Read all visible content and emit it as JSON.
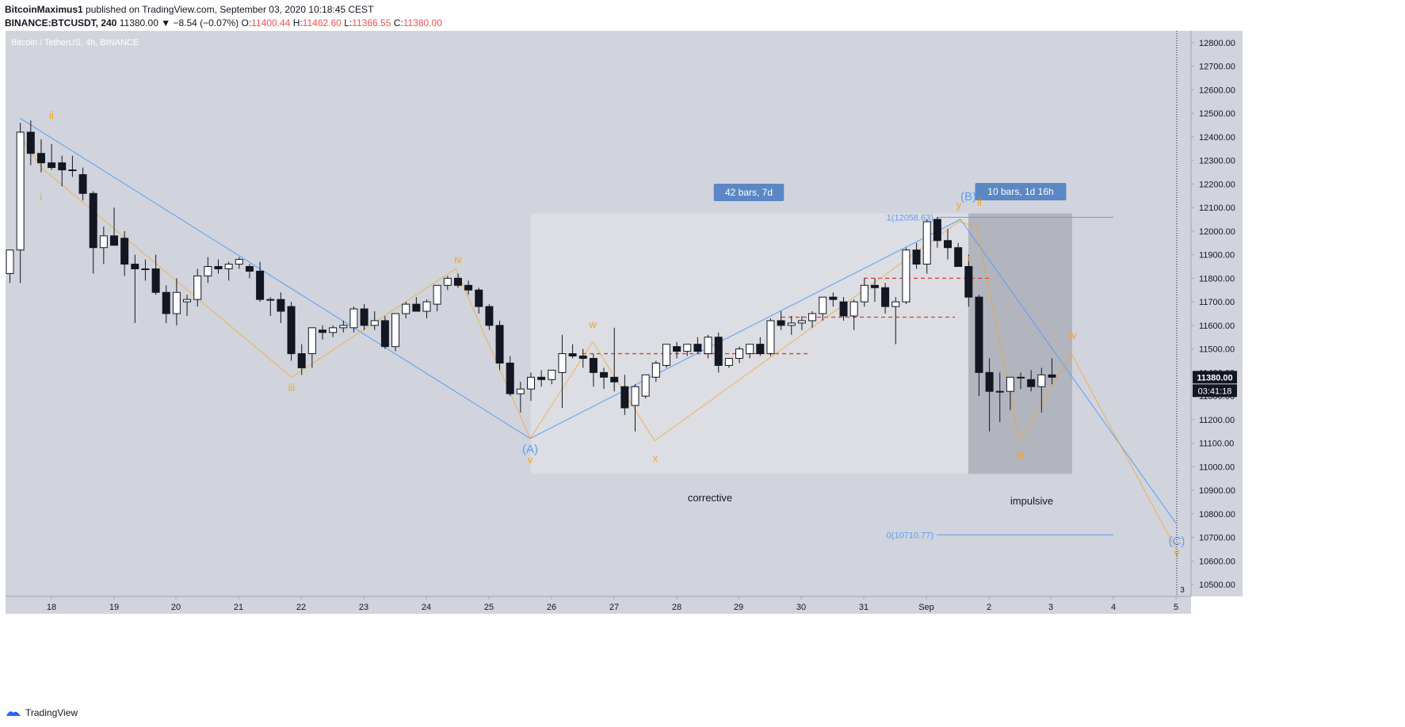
{
  "header": {
    "author": "BitcoinMaximus1",
    "published_text": "published on TradingView.com, September 03, 2020 10:18:45 CEST",
    "symbol": "BINANCE:BTCUSDT, 240",
    "last": "11380.00",
    "change": "▼ −8.54 (−0.07%)",
    "o_label": "O:",
    "o": "11400.44",
    "h_label": "H:",
    "h": "11462.60",
    "l_label": "L:",
    "l": "11366.55",
    "c_label": "C:",
    "c": "11380.00"
  },
  "footer": {
    "brand": "TradingView"
  },
  "colors": {
    "plot_bg": "#d1d4dc",
    "axis_bg": "#d1d4dc",
    "bull": "#ffffff",
    "bear": "#131722",
    "wave_orange": "#f7a21b",
    "trend_blue": "#5b9cf6",
    "range_dark": "#b2b5be",
    "range_light": "#dcdee3",
    "label_bg": "#5b87c4",
    "dash_red": "#e53935"
  },
  "chart_data": {
    "type": "candlestick",
    "title": "Bitcoin / TetherUS, 4h, BINANCE",
    "ylim": [
      10450,
      12850
    ],
    "y_ticks": [
      "12800.00",
      "12700.00",
      "12600.00",
      "12500.00",
      "12400.00",
      "12300.00",
      "12200.00",
      "12100.00",
      "12000.00",
      "11900.00",
      "11800.00",
      "11700.00",
      "11600.00",
      "11500.00",
      "11400.00",
      "11300.00",
      "11200.00",
      "11100.00",
      "11000.00",
      "10900.00",
      "10800.00",
      "10700.00",
      "10600.00",
      "10500.00"
    ],
    "x_ticks": [
      "18",
      "19",
      "20",
      "21",
      "22",
      "23",
      "24",
      "25",
      "26",
      "27",
      "28",
      "29",
      "30",
      "31",
      "Sep",
      "2",
      "3",
      "4",
      "5"
    ],
    "last_price_label": "11380.00",
    "countdown_label": "03:41:18",
    "corner_label": "3",
    "candles_ohlc": [
      [
        11820,
        11920,
        11780,
        11920
      ],
      [
        11920,
        12460,
        11780,
        12420
      ],
      [
        12420,
        12470,
        12280,
        12330
      ],
      [
        12330,
        12390,
        12250,
        12290
      ],
      [
        12290,
        12370,
        12260,
        12270
      ],
      [
        12290,
        12320,
        12190,
        12260
      ],
      [
        12260,
        12320,
        12230,
        12260
      ],
      [
        12240,
        12270,
        12130,
        12160
      ],
      [
        12160,
        12170,
        11820,
        11930
      ],
      [
        11930,
        12020,
        11860,
        11980
      ],
      [
        11980,
        12100,
        11940,
        11940
      ],
      [
        11970,
        12000,
        11810,
        11860
      ],
      [
        11860,
        11900,
        11610,
        11840
      ],
      [
        11840,
        11880,
        11790,
        11840
      ],
      [
        11840,
        11900,
        11730,
        11740
      ],
      [
        11740,
        11770,
        11610,
        11650
      ],
      [
        11650,
        11800,
        11600,
        11740
      ],
      [
        11700,
        11730,
        11640,
        11710
      ],
      [
        11710,
        11840,
        11680,
        11810
      ],
      [
        11810,
        11890,
        11780,
        11850
      ],
      [
        11850,
        11880,
        11820,
        11840
      ],
      [
        11840,
        11870,
        11790,
        11860
      ],
      [
        11860,
        11890,
        11840,
        11880
      ],
      [
        11850,
        11860,
        11800,
        11830
      ],
      [
        11830,
        11870,
        11700,
        11710
      ],
      [
        11710,
        11720,
        11640,
        11710
      ],
      [
        11710,
        11740,
        11610,
        11660
      ],
      [
        11680,
        11700,
        11450,
        11480
      ],
      [
        11480,
        11520,
        11390,
        11420
      ],
      [
        11480,
        11580,
        11420,
        11590
      ],
      [
        11580,
        11600,
        11540,
        11570
      ],
      [
        11570,
        11600,
        11550,
        11590
      ],
      [
        11590,
        11620,
        11570,
        11600
      ],
      [
        11590,
        11680,
        11570,
        11670
      ],
      [
        11670,
        11690,
        11580,
        11600
      ],
      [
        11600,
        11660,
        11580,
        11620
      ],
      [
        11620,
        11640,
        11500,
        11510
      ],
      [
        11510,
        11650,
        11490,
        11650
      ],
      [
        11650,
        11700,
        11630,
        11690
      ],
      [
        11690,
        11720,
        11660,
        11660
      ],
      [
        11660,
        11710,
        11630,
        11700
      ],
      [
        11690,
        11770,
        11660,
        11770
      ],
      [
        11770,
        11810,
        11750,
        11800
      ],
      [
        11800,
        11820,
        11760,
        11770
      ],
      [
        11770,
        11790,
        11730,
        11750
      ],
      [
        11750,
        11760,
        11650,
        11680
      ],
      [
        11680,
        11690,
        11580,
        11600
      ],
      [
        11600,
        11620,
        11410,
        11440
      ],
      [
        11440,
        11470,
        11300,
        11310
      ],
      [
        11310,
        11360,
        11230,
        11330
      ],
      [
        11330,
        11400,
        11280,
        11380
      ],
      [
        11380,
        11410,
        11340,
        11370
      ],
      [
        11370,
        11410,
        11350,
        11410
      ],
      [
        11400,
        11560,
        11250,
        11480
      ],
      [
        11480,
        11520,
        11460,
        11470
      ],
      [
        11470,
        11500,
        11420,
        11460
      ],
      [
        11460,
        11480,
        11340,
        11400
      ],
      [
        11400,
        11420,
        11330,
        11380
      ],
      [
        11380,
        11590,
        11320,
        11360
      ],
      [
        11340,
        11390,
        11220,
        11250
      ],
      [
        11260,
        11350,
        11150,
        11340
      ],
      [
        11300,
        11390,
        11290,
        11390
      ],
      [
        11380,
        11450,
        11360,
        11440
      ],
      [
        11430,
        11520,
        11420,
        11520
      ],
      [
        11510,
        11530,
        11460,
        11490
      ],
      [
        11490,
        11520,
        11470,
        11520
      ],
      [
        11520,
        11550,
        11480,
        11490
      ],
      [
        11480,
        11560,
        11460,
        11550
      ],
      [
        11550,
        11570,
        11400,
        11430
      ],
      [
        11430,
        11460,
        11420,
        11460
      ],
      [
        11460,
        11510,
        11440,
        11500
      ],
      [
        11480,
        11510,
        11460,
        11520
      ],
      [
        11520,
        11550,
        11470,
        11480
      ],
      [
        11480,
        11630,
        11470,
        11620
      ],
      [
        11620,
        11660,
        11580,
        11600
      ],
      [
        11600,
        11640,
        11560,
        11610
      ],
      [
        11610,
        11640,
        11580,
        11620
      ],
      [
        11620,
        11660,
        11590,
        11650
      ],
      [
        11650,
        11720,
        11620,
        11720
      ],
      [
        11720,
        11740,
        11680,
        11710
      ],
      [
        11700,
        11720,
        11620,
        11640
      ],
      [
        11640,
        11710,
        11580,
        11700
      ],
      [
        11700,
        11800,
        11680,
        11770
      ],
      [
        11770,
        11800,
        11700,
        11760
      ],
      [
        11760,
        11780,
        11650,
        11680
      ],
      [
        11680,
        11720,
        11520,
        11700
      ],
      [
        11700,
        11930,
        11690,
        11920
      ],
      [
        11920,
        11950,
        11840,
        11860
      ],
      [
        11860,
        12050,
        11820,
        12040
      ],
      [
        12050,
        12060,
        11930,
        11960
      ],
      [
        11960,
        12010,
        11880,
        11930
      ],
      [
        11930,
        11950,
        11860,
        11850
      ],
      [
        11850,
        11900,
        11680,
        11720
      ],
      [
        11720,
        11730,
        11300,
        11400
      ],
      [
        11400,
        11460,
        11150,
        11320
      ],
      [
        11320,
        11400,
        11190,
        11320
      ],
      [
        11320,
        11380,
        11240,
        11380
      ],
      [
        11380,
        11400,
        11330,
        11380
      ],
      [
        11370,
        11410,
        11320,
        11340
      ],
      [
        11340,
        11420,
        11230,
        11390
      ],
      [
        11390,
        11460,
        11350,
        11380
      ]
    ],
    "wave_labels": [
      "ii",
      "i",
      "iii",
      "iv",
      "v",
      "w",
      "x",
      "y",
      "i",
      "ii",
      "iii",
      "iv",
      "v"
    ],
    "wave_labels_blue": [
      "(A)",
      "(B)",
      "(C)"
    ],
    "fib_levels": [
      {
        "label": "1(12058.63)",
        "value": 12058.63
      },
      {
        "label": "0(10710.77)",
        "value": 10710.77
      }
    ],
    "ranges": [
      {
        "label": "42 bars, 7d",
        "caption": "corrective",
        "shade": "light",
        "y_low": 10970,
        "y_high": 12075
      },
      {
        "label": "10 bars, 1d 16h",
        "caption": "impulsive",
        "shade": "dark",
        "y_low": 10970,
        "y_high": 12075
      }
    ],
    "red_dashed_levels": [
      11480,
      11635,
      11800
    ]
  }
}
